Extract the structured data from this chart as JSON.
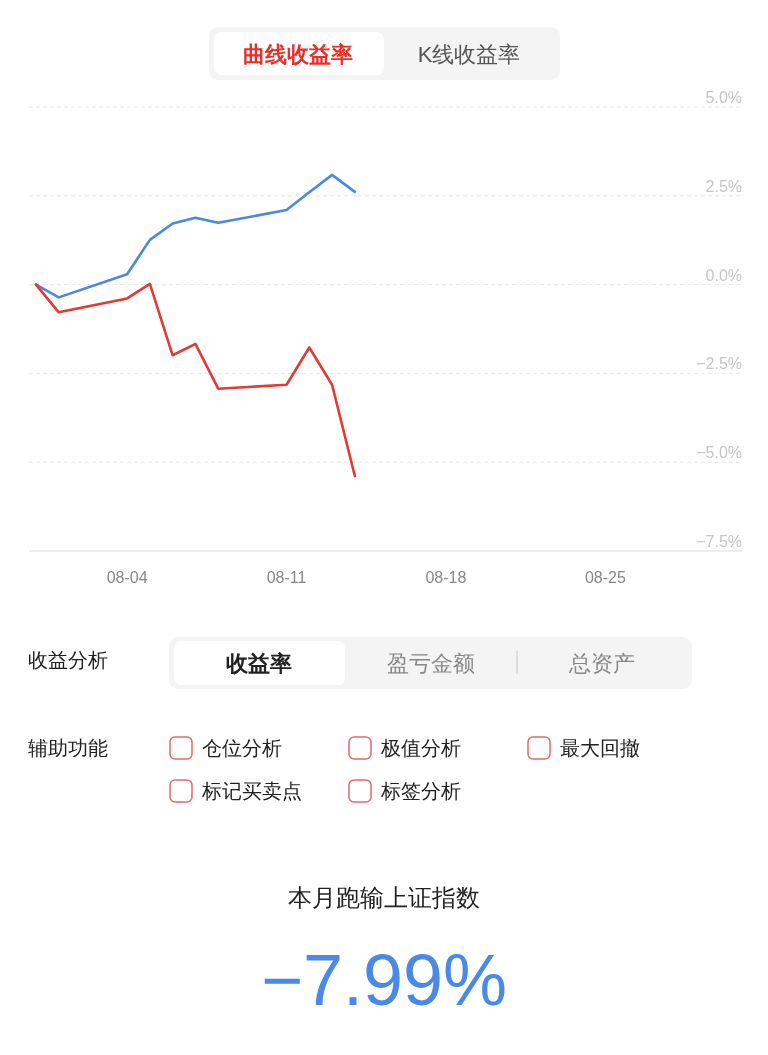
{
  "chart_data": {
    "type": "line",
    "x": [
      "--07-31",
      "--08-01",
      "--08-04",
      "--08-05",
      "--08-06",
      "--08-07",
      "--08-08",
      "--08-11",
      "--08-12",
      "--08-13",
      "--08-14"
    ],
    "series": [
      {
        "color": "#4a88e2",
        "values": [
          0,
          -0.36,
          0.29,
          1.26,
          1.72,
          1.88,
          1.74,
          2.1,
          2.6,
          3.09,
          2.61
        ]
      },
      {
        "color": "#e23a36",
        "values": [
          0,
          -0.78,
          -0.39,
          0.02,
          -1.99,
          -1.67,
          -2.93,
          -2.82,
          -1.77,
          -2.82,
          -5.39
        ]
      }
    ],
    "xlim": [
      "--07-31",
      "--08-31"
    ],
    "xticks": [
      {
        "value": "--08-04",
        "label": "08-04"
      },
      {
        "value": "--08-11",
        "label": "08-11"
      },
      {
        "value": "--08-18",
        "label": "08-18"
      },
      {
        "value": "--08-25",
        "label": "08-25"
      }
    ],
    "ylim": [
      -7.5,
      5
    ],
    "yticks": [
      {
        "value": -7.5,
        "label": "−7.5%"
      },
      {
        "value": -5,
        "label": "−5.0%"
      },
      {
        "value": -2.5,
        "label": "−2.5%"
      },
      {
        "value": 0,
        "label": "0.0%"
      },
      {
        "value": 2.5,
        "label": "2.5%"
      },
      {
        "value": 5,
        "label": "5.0%"
      }
    ],
    "grid": "y",
    "annotations": [
      "曲线收益率",
      "K线收益率",
      "收益分析",
      "收益率",
      "盈亏金额",
      "总资产",
      "辅助功能",
      "仓位分析",
      "极值分析",
      "最大回撤",
      "标记买卖点",
      "标签分析",
      "本月跑输上证指数",
      "−7.99%"
    ]
  }
}
